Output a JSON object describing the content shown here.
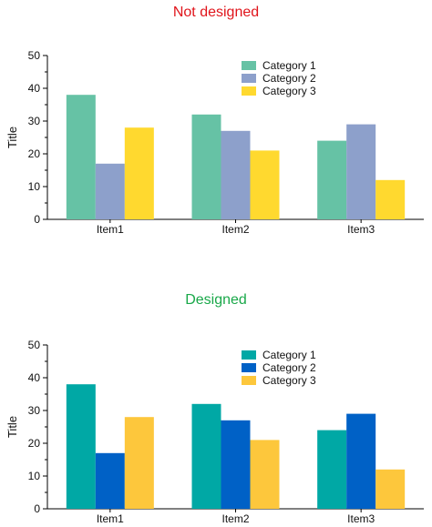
{
  "chart_data": [
    {
      "type": "bar",
      "title": "Not designed",
      "title_color": "#e0141b",
      "ylabel": "Title",
      "xlabel": "",
      "ylim": [
        0,
        50
      ],
      "yticks": [
        0,
        10,
        20,
        30,
        40,
        50
      ],
      "categories": [
        "Item1",
        "Item2",
        "Item3"
      ],
      "series": [
        {
          "name": "Category 1",
          "color": "#66c2a5",
          "values": [
            38,
            32,
            24
          ]
        },
        {
          "name": "Category 2",
          "color": "#8da0cb",
          "values": [
            17,
            27,
            29
          ]
        },
        {
          "name": "Category 3",
          "color": "#ffd92f",
          "values": [
            28,
            21,
            12
          ]
        }
      ],
      "legend": "top-right",
      "grid": false
    },
    {
      "type": "bar",
      "title": "Designed",
      "title_color": "#19a849",
      "ylabel": "Title",
      "xlabel": "",
      "ylim": [
        0,
        50
      ],
      "yticks": [
        0,
        10,
        20,
        30,
        40,
        50
      ],
      "categories": [
        "Item1",
        "Item2",
        "Item3"
      ],
      "series": [
        {
          "name": "Category 1",
          "color": "#00a8a5",
          "values": [
            38,
            32,
            24
          ]
        },
        {
          "name": "Category 2",
          "color": "#0061c6",
          "values": [
            17,
            27,
            29
          ]
        },
        {
          "name": "Category 3",
          "color": "#fdc73c",
          "values": [
            28,
            21,
            12
          ]
        }
      ],
      "legend": "top-right",
      "grid": false
    }
  ]
}
